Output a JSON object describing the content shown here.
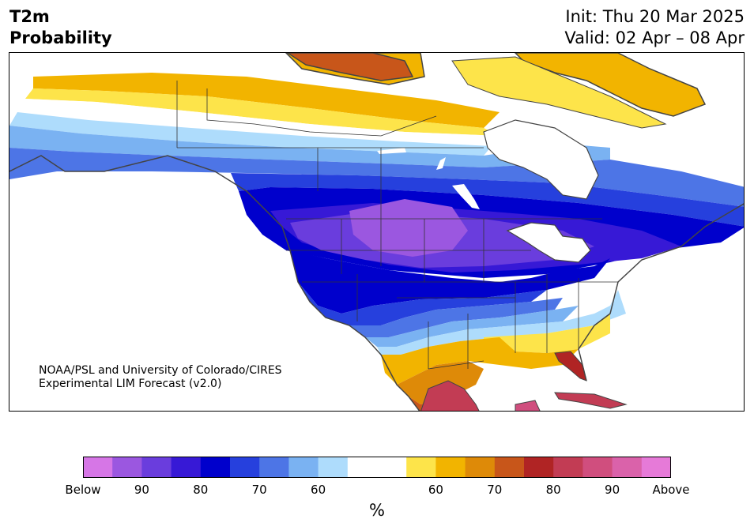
{
  "title": {
    "line1": "T2m",
    "line2": "Probability"
  },
  "dates": {
    "init": "Init: Thu 20 Mar 2025",
    "valid": "Valid: 02 Apr – 08 Apr"
  },
  "credit": {
    "line1": "NOAA/PSL and University of Colorado/CIRES",
    "line2": "Experimental LIM Forecast (v2.0)"
  },
  "colorbar": {
    "colors": [
      "#d676e6",
      "#9b57e0",
      "#6a3ddd",
      "#3719d6",
      "#0000cc",
      "#2640dd",
      "#4d75e6",
      "#7ab2f2",
      "#aedcfc",
      "#ffffff",
      "#ffffff",
      "#fde44a",
      "#f2b400",
      "#de8a08",
      "#c8561a",
      "#b02424",
      "#c23c54",
      "#d04e7e",
      "#da62aa",
      "#e67ad8"
    ],
    "labels": [
      "Below",
      "90",
      "80",
      "70",
      "60",
      "60",
      "70",
      "80",
      "90",
      "Above"
    ],
    "unit": "%"
  },
  "map_colors": {
    "land": "#ffffff",
    "border": "#333333",
    "coast": "#444444"
  }
}
